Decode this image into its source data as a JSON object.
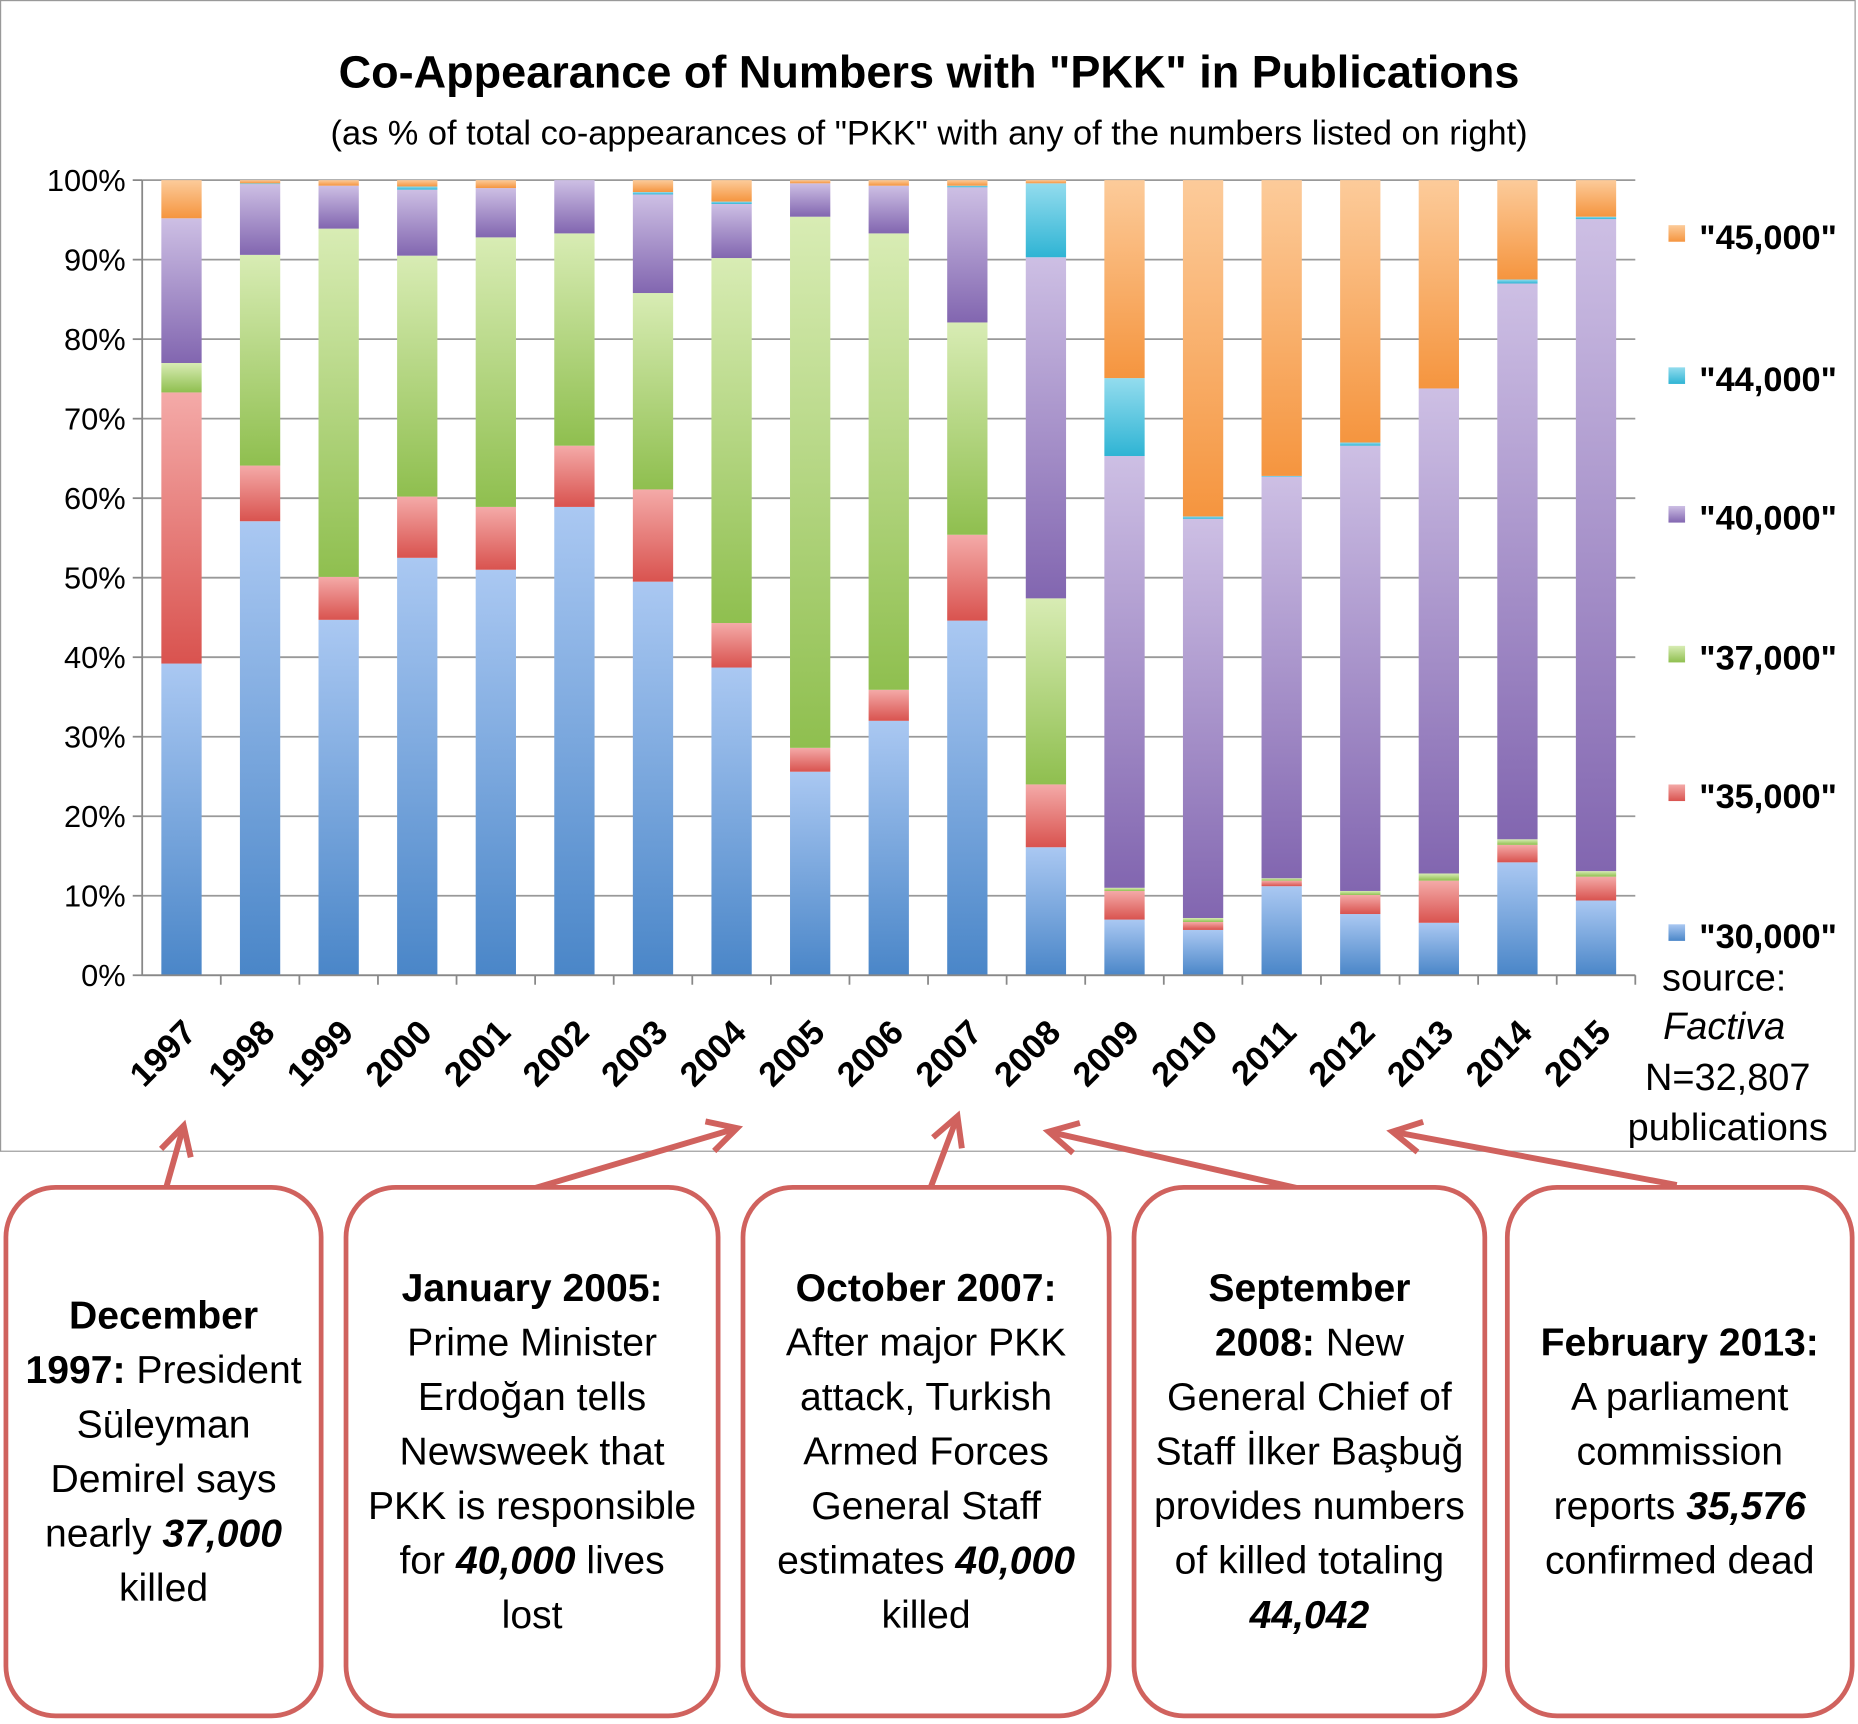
{
  "chart_data": {
    "type": "bar",
    "stacked": true,
    "title": "Co-Appearance of Numbers with \"PKK\" in Publications",
    "subtitle": "(as % of total co-appearances of \"PKK\" with any of the numbers listed on right)",
    "xlabel": "",
    "ylabel": "",
    "ylim": [
      0,
      100
    ],
    "yticks": [
      "0%",
      "10%",
      "20%",
      "30%",
      "40%",
      "50%",
      "60%",
      "70%",
      "80%",
      "90%",
      "100%"
    ],
    "grid": true,
    "legend_position": "right",
    "categories": [
      "1997",
      "1998",
      "1999",
      "2000",
      "2001",
      "2002",
      "2003",
      "2004",
      "2005",
      "2006",
      "2007",
      "2008",
      "2009",
      "2010",
      "2011",
      "2012",
      "2013",
      "2014",
      "2015"
    ],
    "series": [
      {
        "name": "\"30,000\"",
        "color": "#4a86c8",
        "light": "#aac8f2",
        "values": [
          39.2,
          57.1,
          44.7,
          52.5,
          51.0,
          58.9,
          49.5,
          38.7,
          25.6,
          32.0,
          44.6,
          16.1,
          7.0,
          5.7,
          11.2,
          7.7,
          6.6,
          14.2,
          9.4
        ]
      },
      {
        "name": "\"35,000\"",
        "color": "#d9534f",
        "light": "#f4aaa8",
        "values": [
          34.1,
          7.0,
          5.4,
          7.7,
          7.9,
          7.7,
          11.6,
          5.6,
          3.0,
          3.9,
          10.8,
          7.9,
          3.6,
          1.0,
          0.7,
          2.4,
          5.3,
          2.2,
          3.0
        ]
      },
      {
        "name": "\"37,000\"",
        "color": "#8fbf4f",
        "light": "#d8ecb4",
        "values": [
          3.7,
          26.5,
          43.8,
          30.3,
          33.9,
          26.7,
          24.7,
          45.9,
          66.8,
          57.4,
          26.7,
          23.4,
          0.4,
          0.5,
          0.3,
          0.5,
          0.9,
          0.7,
          0.7
        ]
      },
      {
        "name": "\"40,000\"",
        "color": "#8266b0",
        "light": "#cdbfe4",
        "values": [
          18.2,
          8.9,
          5.4,
          8.3,
          6.2,
          6.7,
          12.4,
          6.8,
          4.2,
          6.0,
          17.0,
          42.9,
          54.3,
          50.2,
          50.5,
          56.0,
          61.0,
          69.9,
          82.0
        ]
      },
      {
        "name": "\"44,000\"",
        "color": "#2fb4d4",
        "light": "#93dcee",
        "values": [
          0.0,
          0.1,
          0.0,
          0.4,
          0.0,
          0.0,
          0.3,
          0.3,
          0.0,
          0.0,
          0.2,
          9.3,
          9.8,
          0.3,
          0.1,
          0.4,
          0.0,
          0.5,
          0.3
        ]
      },
      {
        "name": "\"45,000\"",
        "color": "#f5953f",
        "light": "#fccb9a",
        "values": [
          4.8,
          0.4,
          0.7,
          0.8,
          1.0,
          0.0,
          1.5,
          2.7,
          0.4,
          0.7,
          0.7,
          0.4,
          24.9,
          42.3,
          37.2,
          33.0,
          26.2,
          12.5,
          4.6
        ]
      }
    ],
    "source": {
      "label": "source:",
      "name": "Factiva",
      "n": "N=32,807",
      "unit": "publications"
    }
  },
  "callouts": [
    {
      "head": "December 1997:",
      "body": "President Süleyman Demirel says nearly",
      "num": "37,000",
      "tail": "killed",
      "target": "1997"
    },
    {
      "head": "January 2005:",
      "body": "Prime Minister Erdoğan tells Newsweek that PKK is responsible for",
      "num": "40,000",
      "tail": "lives lost",
      "target": "2005"
    },
    {
      "head": "October 2007:",
      "body": "After major PKK attack, Turkish Armed Forces General Staff estimates",
      "num": "40,000",
      "tail": "killed",
      "target": "2007"
    },
    {
      "head": "September 2008:",
      "body": "New General Chief of Staff İlker Başbuğ provides numbers of killed totaling",
      "num": "44,042",
      "tail": "",
      "target": "2008"
    },
    {
      "head": "February 2013:",
      "body": "A parliament commission reports",
      "num": "35,576",
      "tail": "confirmed dead",
      "target": "2013"
    }
  ]
}
